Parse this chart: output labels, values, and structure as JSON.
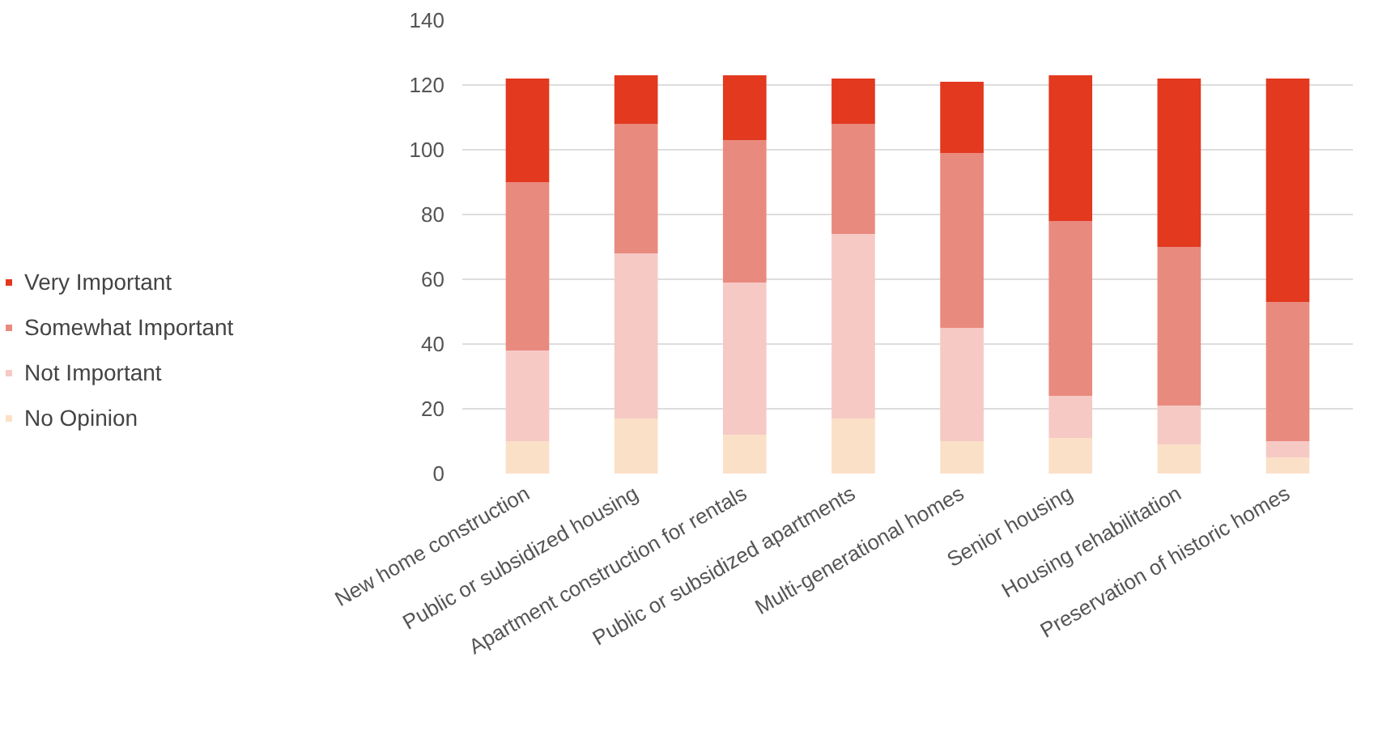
{
  "chart_data": {
    "type": "bar",
    "stacked": true,
    "categories": [
      "New home construction",
      "Public or subsidized housing",
      "Apartment construction for rentals",
      "Public or subsidized apartments",
      "Multi-generational homes",
      "Senior housing",
      "Housing rehabilitation",
      "Preservation of historic homes"
    ],
    "series": [
      {
        "name": "No Opinion",
        "color": "#fbe0c8",
        "values": [
          10,
          17,
          12,
          17,
          10,
          11,
          9,
          5
        ]
      },
      {
        "name": "Not Important",
        "color": "#f6c9c5",
        "values": [
          28,
          51,
          47,
          57,
          35,
          13,
          12,
          5
        ]
      },
      {
        "name": "Somewhat Important",
        "color": "#e98a7f",
        "values": [
          52,
          40,
          44,
          34,
          54,
          54,
          49,
          43
        ]
      },
      {
        "name": "Very Important",
        "color": "#e2391f",
        "values": [
          32,
          15,
          20,
          14,
          22,
          45,
          52,
          69
        ]
      }
    ],
    "ylim": [
      0,
      140
    ],
    "yticks": [
      0,
      20,
      40,
      60,
      80,
      100,
      120,
      140
    ],
    "grid": "y",
    "legend": "left"
  }
}
